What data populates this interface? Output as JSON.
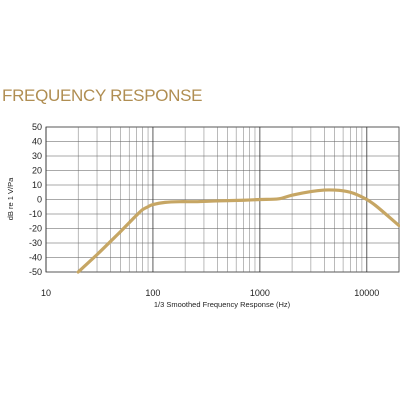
{
  "heading": "FREQUENCY RESPONSE",
  "chart_data": {
    "type": "line",
    "title": "",
    "xlabel": "1/3 Smoothed Frequency Response (Hz)",
    "ylabel": "dB re 1 V/Pa",
    "x_scale": "log",
    "xlim": [
      10,
      20000
    ],
    "ylim": [
      -50,
      50
    ],
    "x_ticks": [
      10,
      100,
      1000,
      10000
    ],
    "x_tick_labels": [
      "10",
      "100",
      "1000",
      "10000"
    ],
    "y_ticks": [
      50,
      40,
      30,
      20,
      10,
      0,
      -10,
      -20,
      -30,
      -40,
      -50
    ],
    "y_tick_labels": [
      "50",
      "40",
      "30",
      "20",
      "10",
      "0",
      "-10",
      "-20",
      "-30",
      "-40",
      "-50"
    ],
    "grid": true,
    "line_color": "#c6a664",
    "series": [
      {
        "x": [
          20,
          30,
          40,
          50,
          60,
          70,
          80,
          90,
          100,
          130,
          180,
          250,
          400,
          700,
          1000,
          1500,
          2000,
          3000,
          4000,
          5000,
          6000,
          7000,
          8000,
          10000,
          12000,
          15000,
          20000
        ],
        "values": [
          -50,
          -38,
          -29,
          -22,
          -16,
          -11,
          -7,
          -5,
          -3.5,
          -2,
          -1.5,
          -1.5,
          -1,
          -0.5,
          0,
          0.5,
          3,
          5.5,
          6.5,
          6.5,
          6,
          5,
          3.5,
          0,
          -4,
          -10,
          -18
        ]
      }
    ]
  }
}
